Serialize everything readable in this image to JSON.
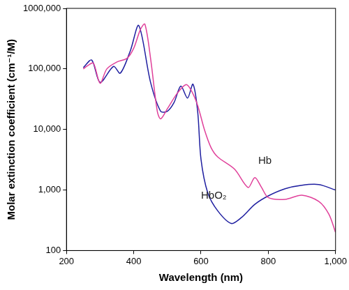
{
  "chart_data": {
    "type": "line",
    "x_label": "Wavelength (nm)",
    "y_label": "Molar extinction coefficient (cm⁻¹/M)",
    "log": "y",
    "grid": false,
    "xlim": [
      200,
      1000
    ],
    "xticks": [
      200,
      400,
      600,
      800,
      {
        "value": 1000,
        "label": "1,000"
      }
    ],
    "ylim": [
      100,
      1000000
    ],
    "yticks": [
      100,
      {
        "value": 1000,
        "label": "1,000"
      },
      {
        "value": 10000,
        "label": "10,000"
      },
      {
        "value": 100000,
        "label": "100,000"
      },
      {
        "value": 1000000,
        "label": "1000,000"
      }
    ],
    "series": [
      {
        "name": "Hb",
        "color": "#e0409a",
        "x": [
          250,
          265,
          280,
          300,
          320,
          350,
          380,
          400,
          420,
          433,
          450,
          470,
          480,
          500,
          530,
          555,
          570,
          590,
          610,
          630,
          650,
          700,
          740,
          760,
          780,
          800,
          850,
          900,
          950,
          980,
          1000
        ],
        "values": [
          100000,
          115000,
          125000,
          58000,
          100000,
          130000,
          150000,
          220000,
          450000,
          550000,
          150000,
          20000,
          15000,
          22000,
          40000,
          55000,
          45000,
          25000,
          10000,
          5000,
          3500,
          2200,
          1100,
          1600,
          1100,
          750,
          700,
          820,
          650,
          400,
          200
        ]
      },
      {
        "name": "HbO₂",
        "color": "#1f1fa0",
        "x": [
          250,
          275,
          300,
          340,
          360,
          390,
          415,
          450,
          480,
          500,
          520,
          540,
          560,
          576,
          590,
          600,
          620,
          650,
          690,
          720,
          760,
          800,
          850,
          900,
          950,
          1000
        ],
        "values": [
          105000,
          140000,
          60000,
          110000,
          85000,
          200000,
          520000,
          60000,
          20000,
          20000,
          28000,
          52000,
          33000,
          56000,
          20000,
          3200,
          900,
          450,
          280,
          350,
          580,
          800,
          1050,
          1200,
          1230,
          1000
        ]
      }
    ],
    "annotations": [
      {
        "text": "Hb",
        "x": 770,
        "y": 3000
      },
      {
        "text": "HbO₂",
        "x": 600,
        "y": 800
      }
    ]
  }
}
